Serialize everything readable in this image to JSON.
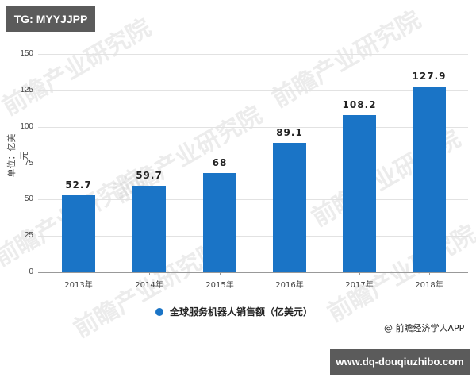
{
  "badges": {
    "top_left": "TG: MYYJJPP",
    "bottom_right": "www.dq-douqiuzhibo.com"
  },
  "watermark": "前瞻产业研究院",
  "source": "@ 前瞻经济学人APP",
  "colors": {
    "bar": "#1a74c6",
    "badge_bg": "#5b5b5b"
  },
  "chart_data": {
    "type": "bar",
    "title": "",
    "categories": [
      "2013年",
      "2014年",
      "2015年",
      "2016年",
      "2017年",
      "2018年"
    ],
    "series": [
      {
        "name": "全球服务机器人销售额（亿美元）",
        "values": [
          52.7,
          59.7,
          68,
          89.1,
          108.2,
          127.9
        ]
      }
    ],
    "value_labels": [
      "52.7",
      "59.7",
      "68",
      "89.1",
      "108.2",
      "127.9"
    ],
    "xlabel": "",
    "ylabel": "单位：亿美元",
    "ylim": [
      0,
      150
    ],
    "yticks": [
      "0",
      "25",
      "50",
      "75",
      "100",
      "125",
      "150"
    ],
    "grid": true,
    "legend_position": "bottom",
    "legend": [
      "全球服务机器人销售额（亿美元）"
    ]
  }
}
